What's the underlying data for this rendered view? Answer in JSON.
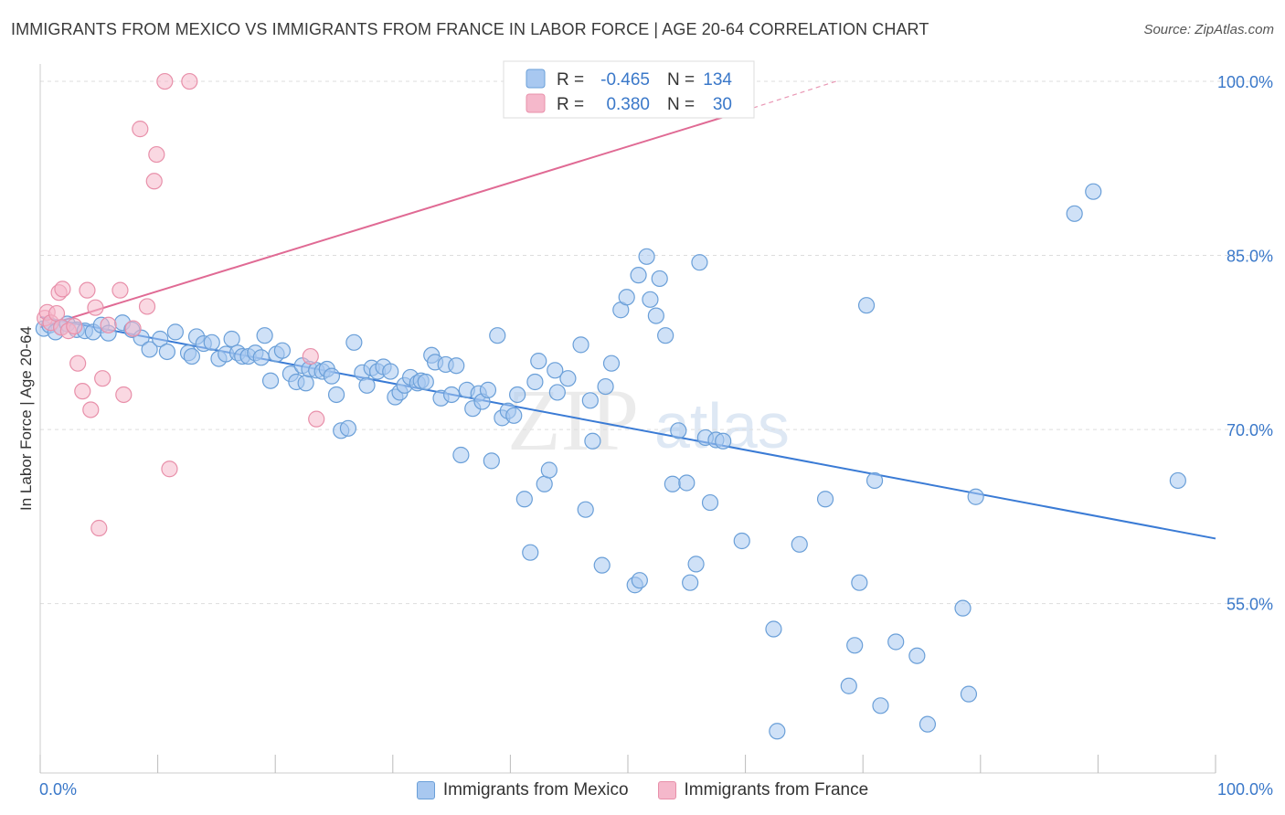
{
  "header": {
    "title": "IMMIGRANTS FROM MEXICO VS IMMIGRANTS FROM FRANCE IN LABOR FORCE | AGE 20-64 CORRELATION CHART",
    "source": "Source: ZipAtlas.com"
  },
  "colors": {
    "mexico_fill": "#a8c8f0",
    "mexico_stroke": "#6a9fd8",
    "mexico_line": "#3a7bd5",
    "france_fill": "#f5b8cb",
    "france_stroke": "#e890aa",
    "france_line": "#e06a94",
    "grid": "#dddddd",
    "tick_label": "#3a78c9"
  },
  "watermark": {
    "zip": "ZIP",
    "atlas": "atlas"
  },
  "stats_legend": [
    {
      "r_label": "R =",
      "r_value": "-0.465",
      "n_label": "N =",
      "n_value": "134"
    },
    {
      "r_label": "R =",
      "r_value": "0.380",
      "n_label": "N =",
      "n_value": "30"
    }
  ],
  "chart_data": {
    "type": "scatter",
    "title": "IMMIGRANTS FROM MEXICO VS IMMIGRANTS FROM FRANCE IN LABOR FORCE | AGE 20-64 CORRELATION CHART",
    "xlabel": "",
    "ylabel": "In Labor Force | Age 20-64",
    "x_tick_labels": [
      "0.0%",
      "100.0%"
    ],
    "y_tick_labels": [
      "100.0%",
      "85.0%",
      "70.0%",
      "55.0%"
    ],
    "y_ticks": [
      100,
      85,
      70,
      55
    ],
    "xlim": [
      0,
      100
    ],
    "ylim": [
      40.4,
      101.5
    ],
    "grid": "horizontal dashed",
    "legend_position": "top-center",
    "series": [
      {
        "name": "Immigrants from Mexico",
        "r": -0.465,
        "n": 134,
        "trend": {
          "x": [
            0,
            100
          ],
          "y": [
            79.7,
            60.6
          ]
        },
        "points": [
          [
            0.3,
            78.7
          ],
          [
            0.8,
            79.0
          ],
          [
            1.3,
            78.4
          ],
          [
            1.8,
            78.8
          ],
          [
            2.3,
            79.1
          ],
          [
            3.1,
            78.6
          ],
          [
            3.8,
            78.5
          ],
          [
            4.5,
            78.4
          ],
          [
            5.2,
            79.0
          ],
          [
            5.8,
            78.3
          ],
          [
            7.0,
            79.2
          ],
          [
            7.8,
            78.6
          ],
          [
            8.6,
            77.9
          ],
          [
            9.3,
            76.9
          ],
          [
            10.2,
            77.8
          ],
          [
            10.8,
            76.7
          ],
          [
            11.5,
            78.4
          ],
          [
            12.6,
            76.6
          ],
          [
            12.9,
            76.3
          ],
          [
            13.3,
            78.0
          ],
          [
            13.9,
            77.4
          ],
          [
            14.6,
            77.5
          ],
          [
            15.2,
            76.1
          ],
          [
            15.8,
            76.5
          ],
          [
            16.3,
            77.8
          ],
          [
            16.8,
            76.6
          ],
          [
            17.2,
            76.3
          ],
          [
            17.7,
            76.3
          ],
          [
            18.3,
            76.6
          ],
          [
            18.8,
            76.2
          ],
          [
            19.1,
            78.1
          ],
          [
            19.6,
            74.2
          ],
          [
            20.1,
            76.5
          ],
          [
            20.6,
            76.8
          ],
          [
            21.3,
            74.8
          ],
          [
            21.8,
            74.1
          ],
          [
            22.3,
            75.5
          ],
          [
            22.6,
            74.0
          ],
          [
            22.9,
            75.2
          ],
          [
            23.5,
            75.1
          ],
          [
            24.0,
            75.0
          ],
          [
            24.4,
            75.2
          ],
          [
            24.8,
            74.6
          ],
          [
            25.2,
            73.0
          ],
          [
            25.6,
            69.9
          ],
          [
            26.2,
            70.1
          ],
          [
            26.7,
            77.5
          ],
          [
            27.4,
            74.9
          ],
          [
            27.8,
            73.8
          ],
          [
            28.2,
            75.3
          ],
          [
            28.7,
            75.0
          ],
          [
            29.2,
            75.4
          ],
          [
            29.8,
            75.0
          ],
          [
            30.2,
            72.8
          ],
          [
            30.6,
            73.2
          ],
          [
            31.0,
            73.8
          ],
          [
            31.5,
            74.5
          ],
          [
            32.1,
            74.0
          ],
          [
            32.4,
            74.2
          ],
          [
            32.8,
            74.1
          ],
          [
            33.3,
            76.4
          ],
          [
            33.6,
            75.8
          ],
          [
            34.1,
            72.7
          ],
          [
            34.5,
            75.6
          ],
          [
            35.0,
            73.0
          ],
          [
            35.4,
            75.5
          ],
          [
            35.8,
            67.8
          ],
          [
            36.3,
            73.4
          ],
          [
            36.8,
            71.8
          ],
          [
            37.3,
            73.1
          ],
          [
            37.6,
            72.4
          ],
          [
            38.1,
            73.4
          ],
          [
            38.4,
            67.3
          ],
          [
            38.9,
            78.1
          ],
          [
            39.3,
            71.0
          ],
          [
            39.8,
            71.6
          ],
          [
            40.3,
            71.2
          ],
          [
            40.6,
            73.0
          ],
          [
            41.2,
            64.0
          ],
          [
            41.7,
            59.4
          ],
          [
            42.1,
            74.1
          ],
          [
            42.4,
            75.9
          ],
          [
            42.9,
            65.3
          ],
          [
            43.3,
            66.5
          ],
          [
            43.8,
            75.1
          ],
          [
            44.0,
            73.2
          ],
          [
            44.9,
            74.4
          ],
          [
            46.0,
            77.3
          ],
          [
            46.4,
            63.1
          ],
          [
            47.0,
            69.0
          ],
          [
            46.8,
            72.5
          ],
          [
            47.8,
            58.3
          ],
          [
            48.1,
            73.7
          ],
          [
            48.6,
            75.7
          ],
          [
            49.4,
            80.3
          ],
          [
            49.9,
            81.4
          ],
          [
            50.6,
            56.6
          ],
          [
            51.0,
            57.0
          ],
          [
            50.9,
            83.3
          ],
          [
            51.6,
            84.9
          ],
          [
            51.9,
            81.2
          ],
          [
            52.4,
            79.8
          ],
          [
            52.7,
            83.0
          ],
          [
            53.2,
            78.1
          ],
          [
            53.8,
            65.3
          ],
          [
            54.3,
            69.9
          ],
          [
            55.0,
            65.4
          ],
          [
            55.3,
            56.8
          ],
          [
            55.8,
            58.4
          ],
          [
            56.1,
            84.4
          ],
          [
            56.6,
            69.3
          ],
          [
            57.0,
            63.7
          ],
          [
            57.5,
            69.1
          ],
          [
            58.1,
            69.0
          ],
          [
            59.7,
            60.4
          ],
          [
            62.4,
            52.8
          ],
          [
            62.7,
            44.0
          ],
          [
            64.6,
            60.1
          ],
          [
            66.8,
            64.0
          ],
          [
            69.7,
            56.8
          ],
          [
            70.3,
            80.7
          ],
          [
            71.5,
            46.2
          ],
          [
            72.8,
            51.7
          ],
          [
            71.0,
            65.6
          ],
          [
            68.8,
            47.9
          ],
          [
            69.3,
            51.4
          ],
          [
            74.6,
            50.5
          ],
          [
            75.5,
            44.6
          ],
          [
            79.0,
            47.2
          ],
          [
            79.6,
            64.2
          ],
          [
            78.5,
            54.6
          ],
          [
            88.0,
            88.6
          ],
          [
            89.6,
            90.5
          ],
          [
            96.8,
            65.6
          ]
        ]
      },
      {
        "name": "Immigrants from France",
        "r": 0.38,
        "n": 30,
        "trend": {
          "x": [
            0,
            60
          ],
          "y": [
            78.8,
            97.5
          ]
        },
        "trend_dashed": {
          "x": [
            60,
            68
          ],
          "y": [
            97.5,
            100.1
          ]
        },
        "points": [
          [
            0.4,
            79.6
          ],
          [
            0.6,
            80.1
          ],
          [
            0.9,
            79.2
          ],
          [
            1.4,
            80.0
          ],
          [
            1.8,
            78.8
          ],
          [
            1.6,
            81.8
          ],
          [
            1.9,
            82.1
          ],
          [
            2.4,
            78.5
          ],
          [
            2.9,
            78.9
          ],
          [
            3.2,
            75.7
          ],
          [
            3.6,
            73.3
          ],
          [
            4.0,
            82.0
          ],
          [
            4.3,
            71.7
          ],
          [
            4.7,
            80.5
          ],
          [
            5.0,
            61.5
          ],
          [
            5.3,
            74.4
          ],
          [
            5.8,
            79.0
          ],
          [
            6.8,
            82.0
          ],
          [
            7.1,
            73.0
          ],
          [
            7.9,
            78.7
          ],
          [
            8.5,
            95.9
          ],
          [
            9.1,
            80.6
          ],
          [
            9.7,
            91.4
          ],
          [
            9.9,
            93.7
          ],
          [
            10.6,
            100.0
          ],
          [
            11.0,
            66.6
          ],
          [
            12.7,
            100.0
          ],
          [
            23.0,
            76.3
          ],
          [
            23.5,
            70.9
          ],
          [
            60.0,
            100.0
          ]
        ]
      }
    ]
  }
}
